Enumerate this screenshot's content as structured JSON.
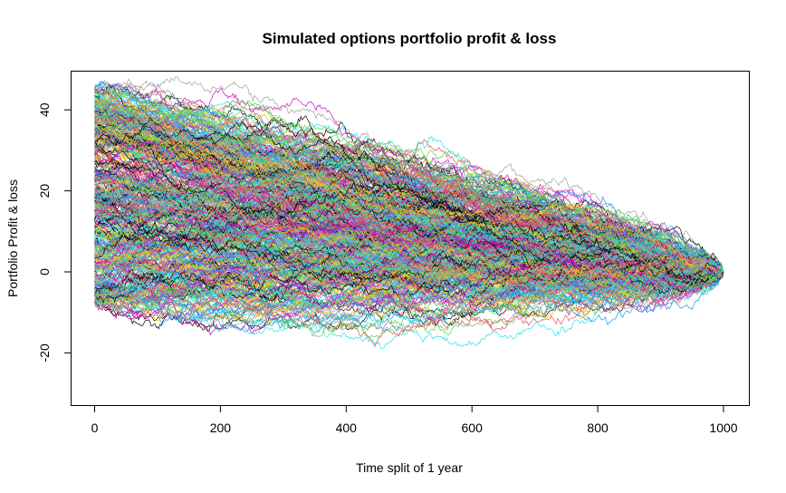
{
  "chart_data": {
    "type": "line",
    "title": "Simulated options portfolio profit & loss",
    "xlabel": "Time split of 1 year",
    "ylabel": "Portfolio Profit & loss",
    "xlim": [
      0,
      1000
    ],
    "ylim": [
      -30,
      46
    ],
    "x_ticks": [
      0,
      200,
      400,
      600,
      800,
      1000
    ],
    "y_ticks": [
      -20,
      0,
      20,
      40
    ],
    "grid": false,
    "legend": "none",
    "simulation": {
      "n_paths": 500,
      "n_steps": 1000,
      "start_range": [
        -8,
        46
      ],
      "end_value": 0
    },
    "colors": [
      "#000000",
      "#DF536B",
      "#61D04F",
      "#2297E6",
      "#28E2E5",
      "#CD0BBC",
      "#F5C710",
      "#9E9E9E"
    ]
  }
}
